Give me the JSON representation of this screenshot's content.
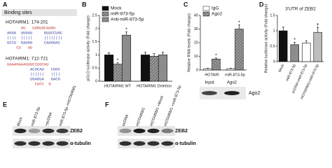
{
  "panel_labels": [
    "A",
    "B",
    "C",
    "D",
    "E",
    "F"
  ],
  "binding_sites": {
    "title": "Binding sites",
    "sites": [
      {
        "label": "HOTAIRM1: 174-201",
        "lines": [
          {
            "text": "      UU   UUGUGCAUGU",
            "color": "#c0302e"
          },
          {
            "text": "AGGA  UUGAU     GUUCCUGC",
            "color": "#2b3a9e"
          },
          {
            "text": "||||  |||||     ||||||||",
            "color": "#2b3a9e"
          },
          {
            "text": "UCCU  GAUGG     CAAGGAC",
            "color": "#2b3a9e"
          },
          {
            "text": "    CU   UU",
            "color": "#c0302e"
          }
        ]
      },
      {
        "label": "HOTAIRM1: 712-721",
        "lines": [
          {
            "text": "UAAAGAAAGUUCCUGCAU",
            "color": "#c0302e"
          },
          {
            "text": "          ACUCAU   CUGC",
            "color": "#2b3a9e"
          },
          {
            "text": "          ||||||   ||||",
            "color": "#2b3a9e"
          },
          {
            "text": "          UGAGUA   GACG",
            "color": "#2b3a9e"
          },
          {
            "text": "            CUCC  G",
            "color": "#c0302e"
          }
        ]
      }
    ]
  },
  "chart_data": [
    {
      "type": "bar",
      "ylabel": "pGLO luciferase activity (Fold change)",
      "categories": [
        "HOTAIRM1 WT",
        "HOTAIRM1 Deletion"
      ],
      "ylim": [
        0,
        2.5
      ],
      "yticks": [
        0,
        0.5,
        1,
        1.5,
        2,
        2.5
      ],
      "legend": "upper left",
      "series": [
        {
          "name": "Mock",
          "color": "#111111",
          "hatched": false,
          "values": [
            1.0,
            1.0
          ],
          "errors": [
            0.08,
            0.1
          ],
          "significance": [
            null,
            null
          ]
        },
        {
          "name": "miR-873-5p",
          "color": "#9a9a9a",
          "hatched": true,
          "values": [
            0.65,
            0.95
          ],
          "errors": [
            0.05,
            0.1
          ],
          "significance": [
            "*",
            null
          ]
        },
        {
          "name": "Anti-miR-873-5p",
          "color": "#8c8c8c",
          "hatched": false,
          "values": [
            1.75,
            1.0
          ],
          "errors": [
            0.12,
            0.1
          ],
          "significance": [
            "*",
            null
          ]
        }
      ]
    },
    {
      "type": "bar",
      "ylabel": "Relative RNA levels (Fold change)",
      "categories": [
        "HOTAIR",
        "miR-873-5p"
      ],
      "ylim": [
        0,
        40
      ],
      "yticks": [
        0,
        10,
        20,
        30,
        40
      ],
      "legend": "upper left",
      "series": [
        {
          "name": "IgG",
          "color": "#ffffff",
          "hatched": false,
          "values": [
            1,
            1
          ],
          "errors": [
            0.3,
            0.3
          ],
          "significance": [
            null,
            null
          ]
        },
        {
          "name": "Ago2",
          "color": "#9a9a9a",
          "hatched": true,
          "values": [
            8,
            30
          ],
          "errors": [
            0.8,
            3
          ],
          "significance": [
            "*",
            "*"
          ]
        }
      ]
    },
    {
      "type": "bar",
      "title": "3'UTR of ZEB2",
      "ylabel": "Relative luciferase activity (Fold change)",
      "categories": [
        "Mock",
        "miR-873-5p",
        "pcDNA+miR-873-5p",
        "HOTAIRM1+miR-873-5p"
      ],
      "ylim": [
        0,
        1.5
      ],
      "yticks": [
        0,
        0.5,
        1,
        1.5
      ],
      "rotate_labels": true,
      "values": [
        1.0,
        0.55,
        0.6,
        0.95
      ],
      "errors": [
        0.12,
        0.08,
        0.08,
        0.15
      ],
      "colors": [
        "#111111",
        "#8c8c8c",
        "#ffffff",
        "#bdbdbd"
      ],
      "significance": [
        null,
        "*",
        null,
        "†"
      ]
    }
  ],
  "blot_c": {
    "lanes": [
      "Input",
      "Ago2"
    ],
    "band": "Ago2"
  },
  "blots": [
    {
      "lanes": [
        "Mock",
        "miR-873-5p",
        "+pcDNA",
        "miR-873-5p +HOTAIRM1"
      ],
      "rows": [
        "ZEB2",
        "α-tubulin"
      ]
    },
    {
      "lanes": [
        "pcDNA",
        "HOTAIRM1",
        "HOTAIRM1 +Mock",
        "HOTAIRM1 +miR-873-5p"
      ],
      "rows": [
        "ZEB2",
        "α-tubulin"
      ]
    }
  ]
}
